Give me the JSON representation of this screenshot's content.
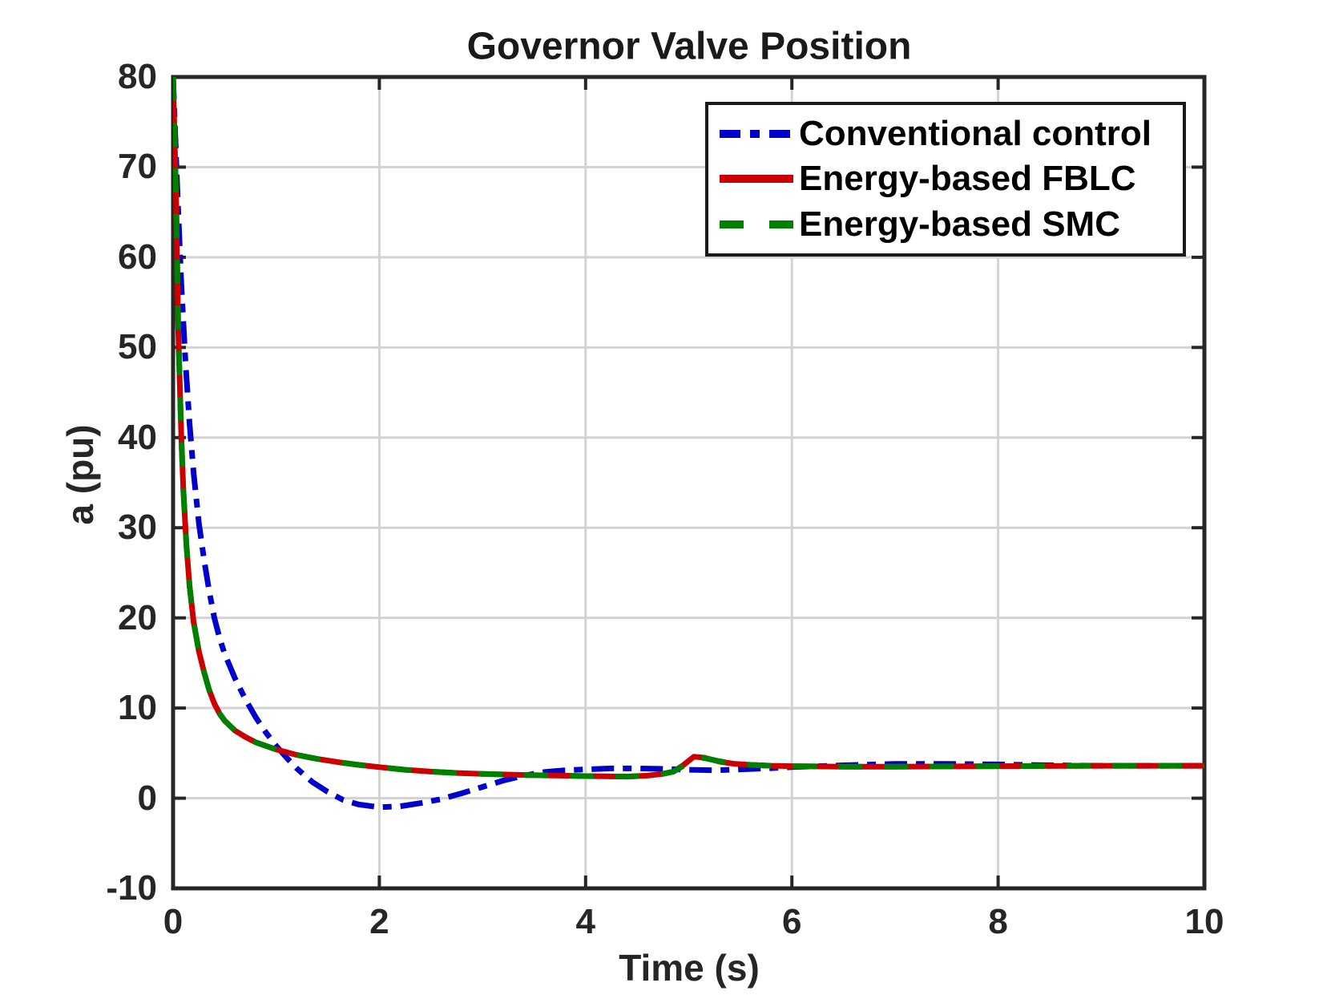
{
  "figure": {
    "background": "#FFFFFF"
  },
  "chart_data": {
    "type": "line",
    "title": "Governor Valve Position",
    "xlabel": "Time (s)",
    "ylabel": "a (pu)",
    "xlim": [
      0,
      10
    ],
    "ylim": [
      -10,
      80
    ],
    "xticks": [
      0,
      2,
      4,
      6,
      8,
      10
    ],
    "yticks": [
      -10,
      0,
      10,
      20,
      30,
      40,
      50,
      60,
      70,
      80
    ],
    "grid": true,
    "legend_position": "top-right",
    "colors": {
      "frame": "#262626",
      "grid": "#D3D3D3",
      "background": "#FFFFFF",
      "text": "#262626"
    },
    "series": [
      {
        "name": "Conventional control",
        "color": "#0000CC",
        "line_style": "dash-dot",
        "x": [
          0,
          0.04,
          0.08,
          0.12,
          0.16,
          0.2,
          0.25,
          0.3,
          0.35,
          0.4,
          0.45,
          0.5,
          0.6,
          0.7,
          0.8,
          0.9,
          1.0,
          1.1,
          1.2,
          1.35,
          1.5,
          1.65,
          1.8,
          2.0,
          2.2,
          2.4,
          2.6,
          2.8,
          3.0,
          3.2,
          3.4,
          3.6,
          3.8,
          4.0,
          4.25,
          4.5,
          4.75,
          5.0,
          5.25,
          5.5,
          5.75,
          6.0,
          6.5,
          7.0,
          7.5,
          8.0,
          8.5,
          9.0,
          10.0
        ],
        "y": [
          80,
          68,
          57,
          48.5,
          41.5,
          36,
          30.5,
          26.5,
          23,
          20,
          17.8,
          16,
          13.3,
          11,
          9,
          7.3,
          5.8,
          4.5,
          3.3,
          1.8,
          0.7,
          -0.2,
          -0.7,
          -1.0,
          -0.9,
          -0.55,
          -0.1,
          0.55,
          1.25,
          1.95,
          2.5,
          2.9,
          3.1,
          3.2,
          3.3,
          3.3,
          3.25,
          3.15,
          3.1,
          3.2,
          3.3,
          3.45,
          3.65,
          3.8,
          3.8,
          3.75,
          3.65,
          3.6,
          3.6
        ]
      },
      {
        "name": "Energy-based FBLC",
        "color": "#CC0000",
        "line_style": "solid",
        "x": [
          0,
          0.03,
          0.05,
          0.08,
          0.1,
          0.13,
          0.16,
          0.2,
          0.25,
          0.3,
          0.35,
          0.4,
          0.45,
          0.5,
          0.6,
          0.7,
          0.8,
          0.9,
          1.0,
          1.2,
          1.4,
          1.6,
          1.8,
          2.0,
          2.25,
          2.5,
          2.75,
          3.0,
          3.25,
          3.5,
          3.75,
          4.0,
          4.2,
          4.4,
          4.6,
          4.75,
          4.85,
          4.95,
          5.05,
          5.15,
          5.3,
          5.45,
          5.6,
          5.8,
          6.0,
          6.5,
          7.0,
          8.0,
          9.0,
          10.0
        ],
        "y": [
          80,
          66,
          52,
          40,
          34,
          28,
          23.5,
          19.5,
          16.3,
          14,
          12,
          10.5,
          9.4,
          8.6,
          7.5,
          6.8,
          6.2,
          5.8,
          5.4,
          4.8,
          4.35,
          4.0,
          3.7,
          3.45,
          3.15,
          2.95,
          2.8,
          2.7,
          2.62,
          2.55,
          2.5,
          2.45,
          2.42,
          2.4,
          2.5,
          2.7,
          2.95,
          3.7,
          4.6,
          4.5,
          4.05,
          3.8,
          3.7,
          3.6,
          3.55,
          3.5,
          3.5,
          3.55,
          3.6,
          3.6
        ]
      },
      {
        "name": "Energy-based SMC",
        "color": "#008000",
        "line_style": "dashed",
        "x": [
          0,
          0.03,
          0.05,
          0.08,
          0.1,
          0.13,
          0.16,
          0.2,
          0.25,
          0.3,
          0.35,
          0.4,
          0.45,
          0.5,
          0.6,
          0.7,
          0.8,
          0.9,
          1.0,
          1.2,
          1.4,
          1.6,
          1.8,
          2.0,
          2.25,
          2.5,
          2.75,
          3.0,
          3.25,
          3.5,
          3.75,
          4.0,
          4.2,
          4.4,
          4.6,
          4.75,
          4.85,
          4.95,
          5.05,
          5.15,
          5.3,
          5.45,
          5.6,
          5.8,
          6.0,
          6.5,
          7.0,
          8.0,
          9.0,
          10.0
        ],
        "y": [
          80,
          66,
          52,
          40,
          34,
          28,
          23.5,
          19.5,
          16.3,
          14,
          12,
          10.5,
          9.4,
          8.6,
          7.5,
          6.8,
          6.2,
          5.8,
          5.4,
          4.8,
          4.35,
          4.0,
          3.7,
          3.45,
          3.15,
          2.95,
          2.8,
          2.7,
          2.62,
          2.55,
          2.5,
          2.45,
          2.42,
          2.4,
          2.5,
          2.7,
          2.95,
          3.6,
          4.5,
          4.45,
          4.1,
          3.8,
          3.7,
          3.6,
          3.55,
          3.5,
          3.5,
          3.55,
          3.6,
          3.6
        ]
      }
    ]
  }
}
